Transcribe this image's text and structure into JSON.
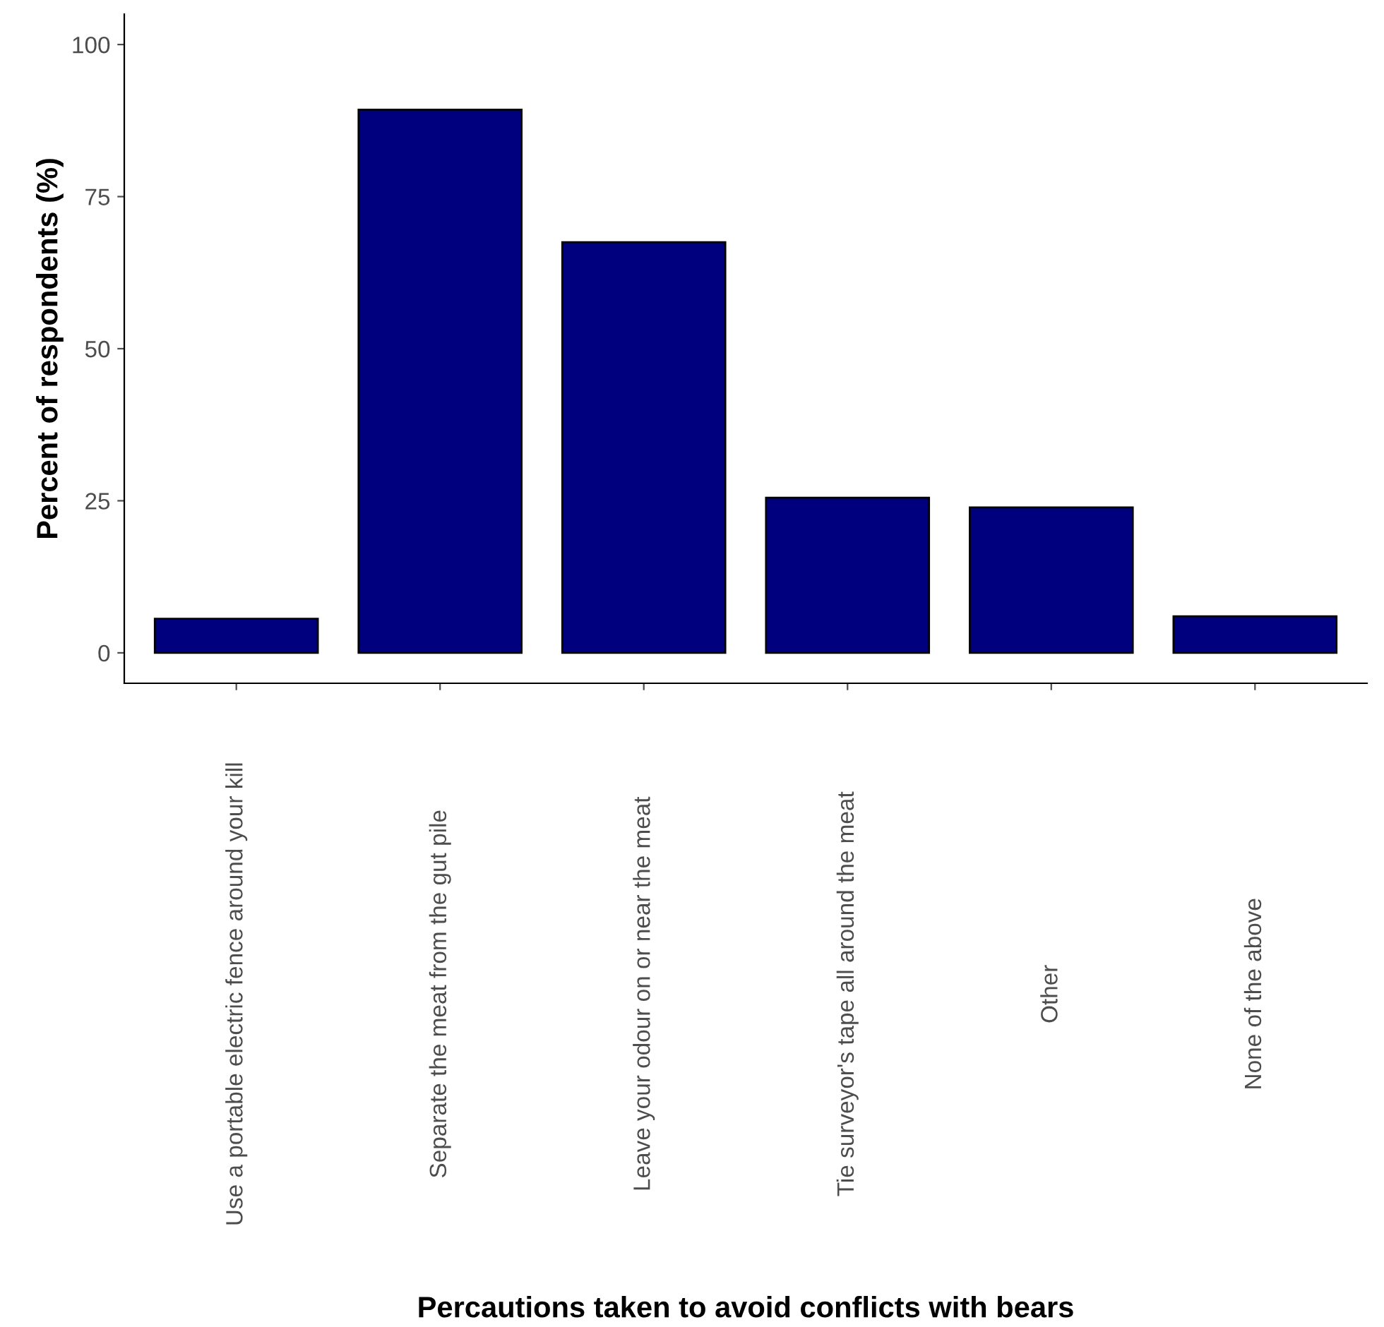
{
  "chart_data": {
    "type": "bar",
    "xlabel": "Percautions taken to avoid conflicts with bears",
    "ylabel": "Percent of respondents (%)",
    "categories": [
      "Use a portable electric fence around your kill",
      "Separate the meat from the gut pile",
      "Leave your odour on or near the meat",
      "Tie surveyor's tape all around the meat",
      "Other",
      "None of the above"
    ],
    "values": [
      5.6,
      89.3,
      67.5,
      25.5,
      23.9,
      6.0
    ],
    "color": "#00007f",
    "ylim": [
      -5,
      105
    ],
    "yticks": [
      0,
      25,
      50,
      75,
      100
    ],
    "grid": false
  }
}
